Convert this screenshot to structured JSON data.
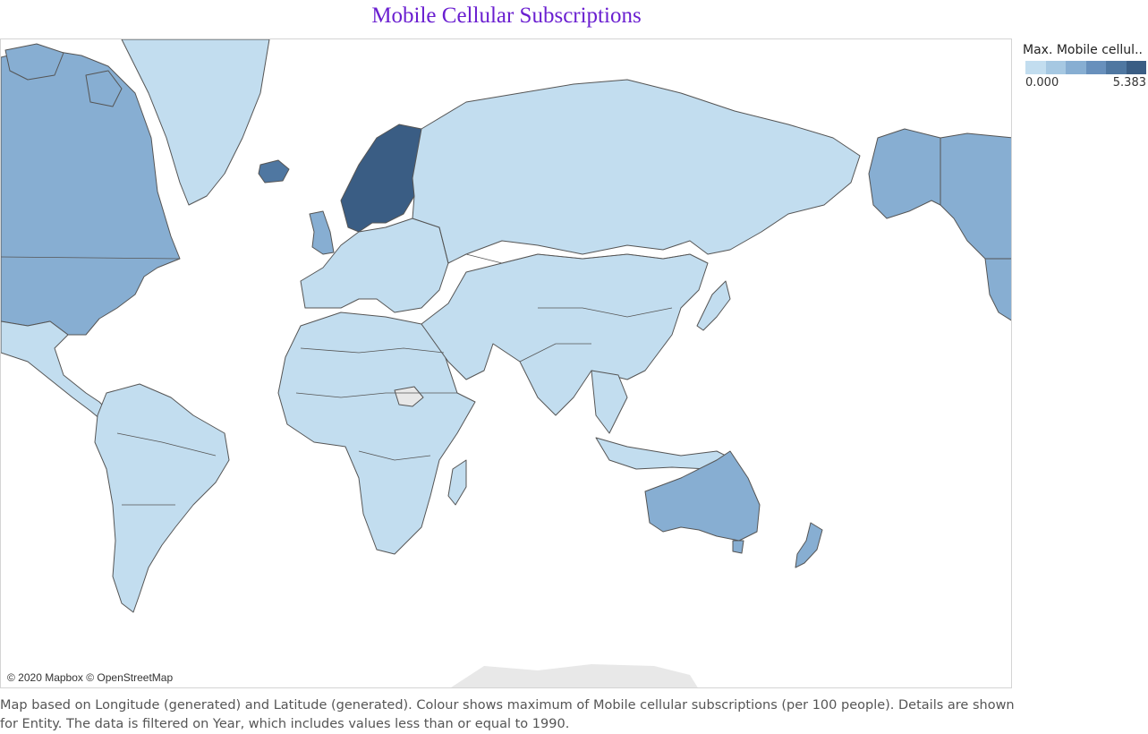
{
  "title": "Mobile Cellular Subscriptions",
  "title_color": "#6a1fd0",
  "attribution": "© 2020 Mapbox © OpenStreetMap",
  "legend": {
    "title": "Max. Mobile cellul..",
    "min_label": "0.000",
    "max_label": "5.383",
    "min": 0,
    "max": 5.383,
    "colors": [
      "#c2ddef",
      "#a6c8e2",
      "#87aed2",
      "#6890bc",
      "#4f77a1",
      "#3a5d84"
    ]
  },
  "null_color": "#e8e8e8",
  "border_color": "#555555",
  "caption": "Map based on Longitude (generated) and Latitude (generated).  Colour shows maximum of Mobile cellular subscriptions (per 100 people).  Details are shown for Entity. The data is filtered on Year, which includes values less than or equal to 1990.",
  "regions": [
    {
      "name": "Norway / Sweden / Finland",
      "level": 5
    },
    {
      "name": "Iceland",
      "level": 4
    },
    {
      "name": "Canada / United States",
      "level": 2
    },
    {
      "name": "Australia / New Zealand",
      "level": 2
    },
    {
      "name": "United Kingdom",
      "level": 2
    },
    {
      "name": "Russia",
      "level": 0
    },
    {
      "name": "Greenland",
      "level": 0
    },
    {
      "name": "Africa",
      "level": 0
    },
    {
      "name": "South America",
      "level": 0
    },
    {
      "name": "Asia",
      "level": 0
    },
    {
      "name": "South Sudan",
      "level": null
    }
  ]
}
